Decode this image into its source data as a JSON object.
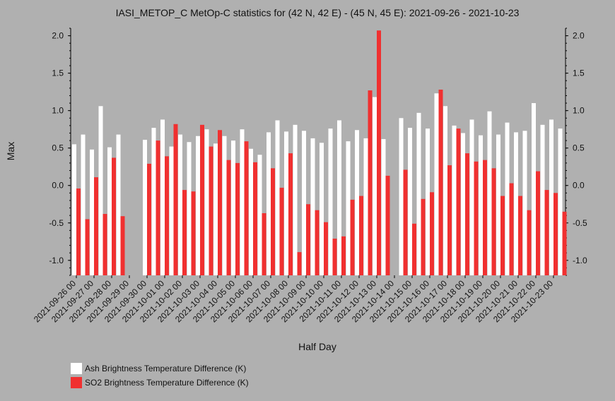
{
  "chart_data": {
    "type": "bar",
    "title": "IASI_METOP_C MetOp-C statistics for (42 N, 42 E) - (45 N, 45 E): 2021-09-26 - 2021-10-23",
    "xlabel": "Half Day",
    "ylabel": "Max",
    "ylim": [
      -1.2,
      2.1
    ],
    "yticks": [
      "2.0",
      "1.5",
      "1.0",
      "0.5",
      "0.0",
      "-0.5",
      "-1.0"
    ],
    "grid": false,
    "legend_position": "bottom-left",
    "categories": [
      "2021-09-26 00",
      "2021-09-26 12",
      "2021-09-27 00",
      "2021-09-27 12",
      "2021-09-28 00",
      "2021-09-28 12",
      "2021-09-29 00",
      "2021-09-29 12",
      "2021-09-30 00",
      "2021-09-30 12",
      "2021-10-01 00",
      "2021-10-01 12",
      "2021-10-02 00",
      "2021-10-02 12",
      "2021-10-03 00",
      "2021-10-03 12",
      "2021-10-04 00",
      "2021-10-04 12",
      "2021-10-05 00",
      "2021-10-05 12",
      "2021-10-06 00",
      "2021-10-06 12",
      "2021-10-07 00",
      "2021-10-07 12",
      "2021-10-08 00",
      "2021-10-08 12",
      "2021-10-09 00",
      "2021-10-09 12",
      "2021-10-10 00",
      "2021-10-10 12",
      "2021-10-11 00",
      "2021-10-11 12",
      "2021-10-12 00",
      "2021-10-12 12",
      "2021-10-13 00",
      "2021-10-13 12",
      "2021-10-14 00",
      "2021-10-14 12",
      "2021-10-15 00",
      "2021-10-15 12",
      "2021-10-16 00",
      "2021-10-16 12",
      "2021-10-17 00",
      "2021-10-17 12",
      "2021-10-18 00",
      "2021-10-18 12",
      "2021-10-19 00",
      "2021-10-19 12",
      "2021-10-20 00",
      "2021-10-20 12",
      "2021-10-21 00",
      "2021-10-21 12",
      "2021-10-22 00",
      "2021-10-22 12",
      "2021-10-23 00",
      "2021-10-23 12"
    ],
    "tick_labels": [
      "2021-09-26 00",
      "2021-09-27 00",
      "2021-09-28 00",
      "2021-09-29 00",
      "2021-09-30 00",
      "2021-10-01 00",
      "2021-10-02 00",
      "2021-10-03 00",
      "2021-10-04 00",
      "2021-10-05 00",
      "2021-10-06 00",
      "2021-10-07 00",
      "2021-10-08 00",
      "2021-10-09 00",
      "2021-10-10 00",
      "2021-10-11 00",
      "2021-10-12 00",
      "2021-10-13 00",
      "2021-10-14 00",
      "2021-10-15 00",
      "2021-10-16 00",
      "2021-10-17 00",
      "2021-10-18 00",
      "2021-10-19 00",
      "2021-10-20 00",
      "2021-10-21 00",
      "2021-10-22 00",
      "2021-10-23 00"
    ],
    "series": [
      {
        "name": "Ash Brightness Temperature Difference (K)",
        "color": "#ffffff",
        "values": [
          0.55,
          0.68,
          0.48,
          1.06,
          0.51,
          0.68,
          null,
          null,
          0.61,
          0.77,
          0.88,
          0.52,
          0.68,
          0.58,
          0.66,
          0.75,
          0.56,
          0.66,
          0.6,
          0.75,
          0.49,
          0.41,
          0.71,
          0.87,
          0.72,
          0.81,
          0.73,
          0.63,
          0.57,
          0.76,
          0.87,
          0.59,
          0.74,
          0.63,
          1.18,
          0.62,
          null,
          0.9,
          0.77,
          0.97,
          0.76,
          1.23,
          1.06,
          0.8,
          0.7,
          0.88,
          0.67,
          0.99,
          0.68,
          0.84,
          0.71,
          0.73,
          1.1,
          0.81,
          0.88,
          0.76
        ]
      },
      {
        "name": "SO2 Brightness Temperature Difference (K)",
        "color": "#f03030",
        "values": [
          -0.04,
          -0.45,
          0.11,
          -0.38,
          0.37,
          -0.41,
          null,
          null,
          0.29,
          0.6,
          0.39,
          0.82,
          -0.06,
          -0.08,
          0.81,
          0.52,
          0.74,
          0.34,
          0.3,
          0.59,
          0.31,
          -0.37,
          0.23,
          -0.03,
          0.43,
          -0.89,
          -0.25,
          -0.33,
          -0.49,
          -0.71,
          -0.68,
          -0.19,
          -0.14,
          1.27,
          2.07,
          0.13,
          null,
          0.21,
          -0.51,
          -0.18,
          -0.09,
          1.28,
          0.27,
          0.76,
          0.43,
          0.32,
          0.34,
          0.23,
          -0.14,
          0.03,
          -0.14,
          -0.33,
          0.19,
          -0.06,
          -0.1,
          -0.35
        ]
      }
    ]
  }
}
